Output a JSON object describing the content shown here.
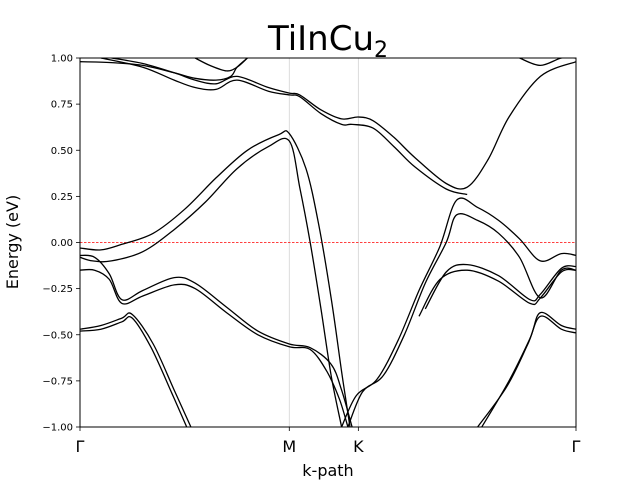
{
  "chart_data": {
    "type": "line",
    "title": {
      "main": "TiInCu",
      "subscript": "2"
    },
    "xlabel": "k-path",
    "ylabel": "Energy (eV)",
    "ylim": [
      -1.0,
      1.0
    ],
    "yticks": [
      -1.0,
      -0.75,
      -0.5,
      -0.25,
      0.0,
      0.25,
      0.5,
      0.75,
      1.0
    ],
    "ytick_labels": [
      "−1.00",
      "−0.75",
      "−0.50",
      "−0.25",
      "0.00",
      "0.25",
      "0.50",
      "0.75",
      "1.00"
    ],
    "xlim": [
      0,
      2.37
    ],
    "kpoints": [
      {
        "label": "Γ",
        "x": 0.0
      },
      {
        "label": "M",
        "x": 1.0
      },
      {
        "label": "K",
        "x": 1.33
      },
      {
        "label": "Γ",
        "x": 2.37
      }
    ],
    "fermi_level": 0.0,
    "colors": {
      "bands": "#000000",
      "fermi": "#ff0000",
      "grid": "#d3d3d3"
    },
    "series": [
      {
        "x": [
          0.0,
          0.1,
          0.2,
          0.35,
          0.5,
          0.65,
          0.8,
          0.95,
          1.0,
          1.08,
          1.14,
          1.2,
          1.25,
          1.29
        ],
        "values": [
          -0.03,
          -0.04,
          -0.01,
          0.05,
          0.18,
          0.35,
          0.5,
          0.585,
          0.59,
          0.4,
          0.1,
          -0.3,
          -0.7,
          -1.0
        ]
      },
      {
        "x": [
          0.0,
          0.06,
          0.15,
          0.3,
          0.45,
          0.6,
          0.75,
          0.9,
          1.0,
          1.05,
          1.1,
          1.15,
          1.2,
          1.25
        ],
        "values": [
          -0.08,
          -0.1,
          -0.1,
          -0.05,
          0.07,
          0.22,
          0.4,
          0.52,
          0.55,
          0.3,
          0.0,
          -0.35,
          -0.72,
          -1.0
        ]
      },
      {
        "x": [
          0.0,
          0.07,
          0.14,
          0.2,
          0.3,
          0.45,
          0.55,
          0.7,
          0.85,
          1.0,
          1.1,
          1.2,
          1.25,
          1.3
        ],
        "values": [
          -0.07,
          -0.08,
          -0.17,
          -0.31,
          -0.26,
          -0.19,
          -0.22,
          -0.35,
          -0.48,
          -0.55,
          -0.57,
          -0.66,
          -0.8,
          -1.0
        ]
      },
      {
        "x": [
          0.0,
          0.07,
          0.14,
          0.2,
          0.3,
          0.45,
          0.55,
          0.7,
          0.85,
          1.0,
          1.1,
          1.18,
          1.24,
          1.28
        ],
        "values": [
          -0.15,
          -0.15,
          -0.2,
          -0.33,
          -0.29,
          -0.23,
          -0.25,
          -0.38,
          -0.5,
          -0.565,
          -0.58,
          -0.7,
          -0.85,
          -1.0
        ]
      },
      {
        "x": [
          0.0,
          0.1,
          0.2,
          0.25,
          0.35,
          0.45,
          0.53
        ],
        "values": [
          -0.47,
          -0.45,
          -0.41,
          -0.39,
          -0.55,
          -0.8,
          -1.0
        ]
      },
      {
        "x": [
          0.0,
          0.1,
          0.2,
          0.25,
          0.34,
          0.44,
          0.51
        ],
        "values": [
          -0.48,
          -0.47,
          -0.43,
          -0.41,
          -0.57,
          -0.82,
          -1.0
        ]
      },
      {
        "x": [
          0.0,
          0.15,
          0.3,
          0.45,
          0.55,
          0.65,
          0.72,
          0.75,
          0.8
        ],
        "values": [
          0.98,
          0.975,
          0.96,
          0.92,
          0.89,
          0.88,
          0.9,
          0.95,
          1.0
        ]
      },
      {
        "x": [
          0.1,
          0.3,
          0.45,
          0.55,
          0.65,
          0.75,
          0.9,
          1.0,
          1.05,
          1.15,
          1.25,
          1.3,
          1.4,
          1.5,
          1.6,
          1.75,
          1.85
        ],
        "values": [
          1.0,
          0.95,
          0.88,
          0.84,
          0.83,
          0.88,
          0.82,
          0.8,
          0.79,
          0.7,
          0.64,
          0.64,
          0.62,
          0.52,
          0.41,
          0.29,
          0.26
        ]
      },
      {
        "x": [
          0.15,
          0.3,
          0.45,
          0.55,
          0.65,
          0.75,
          0.9,
          1.0,
          1.05,
          1.15,
          1.25,
          1.33,
          1.4,
          1.5,
          1.6,
          1.75,
          1.85,
          1.95,
          2.05,
          2.2,
          2.37
        ],
        "values": [
          1.0,
          0.97,
          0.92,
          0.88,
          0.86,
          0.9,
          0.84,
          0.81,
          0.8,
          0.72,
          0.67,
          0.68,
          0.66,
          0.57,
          0.46,
          0.32,
          0.3,
          0.45,
          0.68,
          0.9,
          0.98
        ]
      },
      {
        "x": [
          0.55,
          0.62,
          0.7,
          0.75,
          0.8
        ],
        "values": [
          1.0,
          0.96,
          0.93,
          0.95,
          1.0
        ]
      },
      {
        "x": [
          1.28,
          1.35,
          1.45,
          1.55,
          1.65,
          1.75,
          1.8,
          1.9,
          2.0,
          2.1,
          2.2,
          2.3,
          2.37
        ],
        "values": [
          -1.0,
          -0.81,
          -0.72,
          -0.5,
          -0.22,
          0.0,
          0.15,
          0.12,
          0.05,
          -0.08,
          -0.3,
          -0.15,
          -0.15
        ]
      },
      {
        "x": [
          1.25,
          1.32,
          1.42,
          1.52,
          1.62,
          1.72,
          1.8,
          1.9,
          2.0,
          2.1,
          2.2,
          2.3,
          2.37
        ],
        "values": [
          -1.0,
          -0.83,
          -0.74,
          -0.53,
          -0.26,
          -0.02,
          0.23,
          0.19,
          0.12,
          0.02,
          -0.1,
          -0.06,
          -0.07
        ]
      },
      {
        "x": [
          1.65,
          1.75,
          1.85,
          2.0,
          2.15,
          2.2,
          2.3,
          2.37
        ],
        "values": [
          -0.36,
          -0.16,
          -0.12,
          -0.18,
          -0.31,
          -0.28,
          -0.14,
          -0.13
        ]
      },
      {
        "x": [
          1.62,
          1.72,
          1.85,
          2.0,
          2.15,
          2.2,
          2.3,
          2.37
        ],
        "values": [
          -0.4,
          -0.2,
          -0.15,
          -0.21,
          -0.33,
          -0.3,
          -0.16,
          -0.15
        ]
      },
      {
        "x": [
          1.92,
          2.05,
          2.15,
          2.2,
          2.3,
          2.37
        ],
        "values": [
          -1.0,
          -0.75,
          -0.52,
          -0.38,
          -0.45,
          -0.47
        ]
      },
      {
        "x": [
          1.9,
          2.04,
          2.14,
          2.2,
          2.3,
          2.37
        ],
        "values": [
          -1.0,
          -0.78,
          -0.55,
          -0.4,
          -0.47,
          -0.49
        ]
      },
      {
        "x": [
          2.1,
          2.2,
          2.3,
          2.37
        ],
        "values": [
          1.0,
          0.96,
          1.0,
          1.0
        ]
      }
    ]
  }
}
